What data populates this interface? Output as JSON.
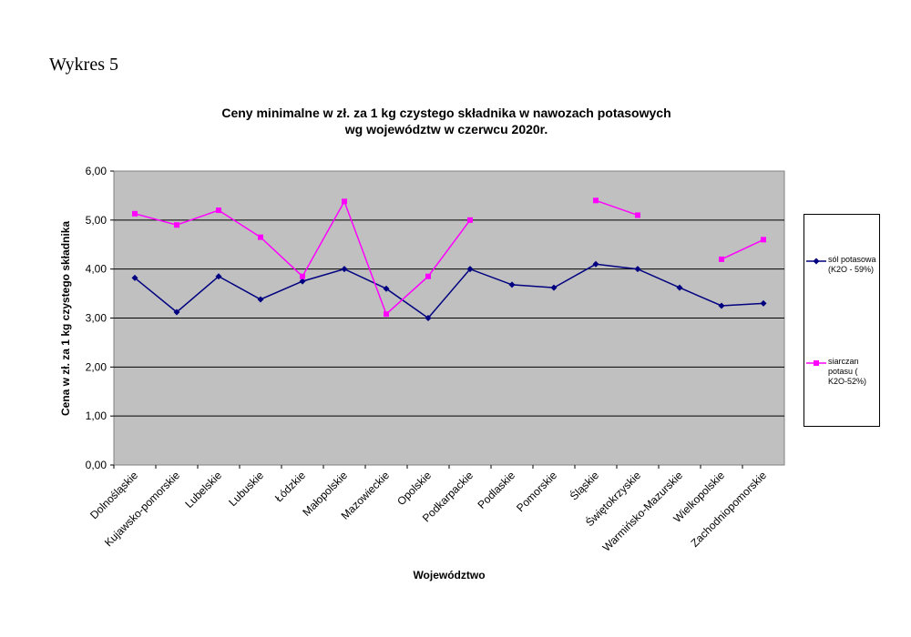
{
  "document": {
    "label": "Wykres 5"
  },
  "chart_data": {
    "type": "line",
    "title": [
      "Ceny minimalne  w zł. za 1 kg czystego składnika w nawozach potasowych",
      "wg województw w czerwcu  2020r."
    ],
    "xlabel": "Województwo",
    "ylabel": "Cena w zł. za 1 kg czystego składnika",
    "ylim": [
      0,
      6
    ],
    "yticks": [
      "0,00",
      "1,00",
      "2,00",
      "3,00",
      "4,00",
      "5,00",
      "6,00"
    ],
    "grid": true,
    "legend_position": "right",
    "categories": [
      "Dolnośląskie",
      "Kujawsko-pomorskie",
      "Lubelskie",
      "Lubuskie",
      "Łódzkie",
      "Małopolskie",
      "Mazowieckie",
      "Opolskie",
      "Podkarpackie",
      "Podlaskie",
      "Pomorskie",
      "Śląskie",
      "Świętokrzyskie",
      "Warmińsko-Mazurskie",
      "Wielkopolskie",
      "Zachodniopomorskie"
    ],
    "series": [
      {
        "name": "sól potasowa (K2O - 59%)",
        "color": "#000080",
        "marker": "diamond",
        "values": [
          3.82,
          3.12,
          3.85,
          3.38,
          3.75,
          4.0,
          3.6,
          3.0,
          4.0,
          3.68,
          3.62,
          4.1,
          4.0,
          3.62,
          3.25,
          3.3
        ]
      },
      {
        "name": "siarczan potasu ( K2O-52%)",
        "color": "#ff00ff",
        "marker": "square",
        "values": [
          5.13,
          4.9,
          5.2,
          4.65,
          3.85,
          5.38,
          3.08,
          3.85,
          5.0,
          null,
          null,
          5.4,
          5.1,
          null,
          4.2,
          4.6
        ]
      }
    ],
    "colors": {
      "plot_background": "#c0c0c0",
      "gridline": "#000000"
    }
  }
}
